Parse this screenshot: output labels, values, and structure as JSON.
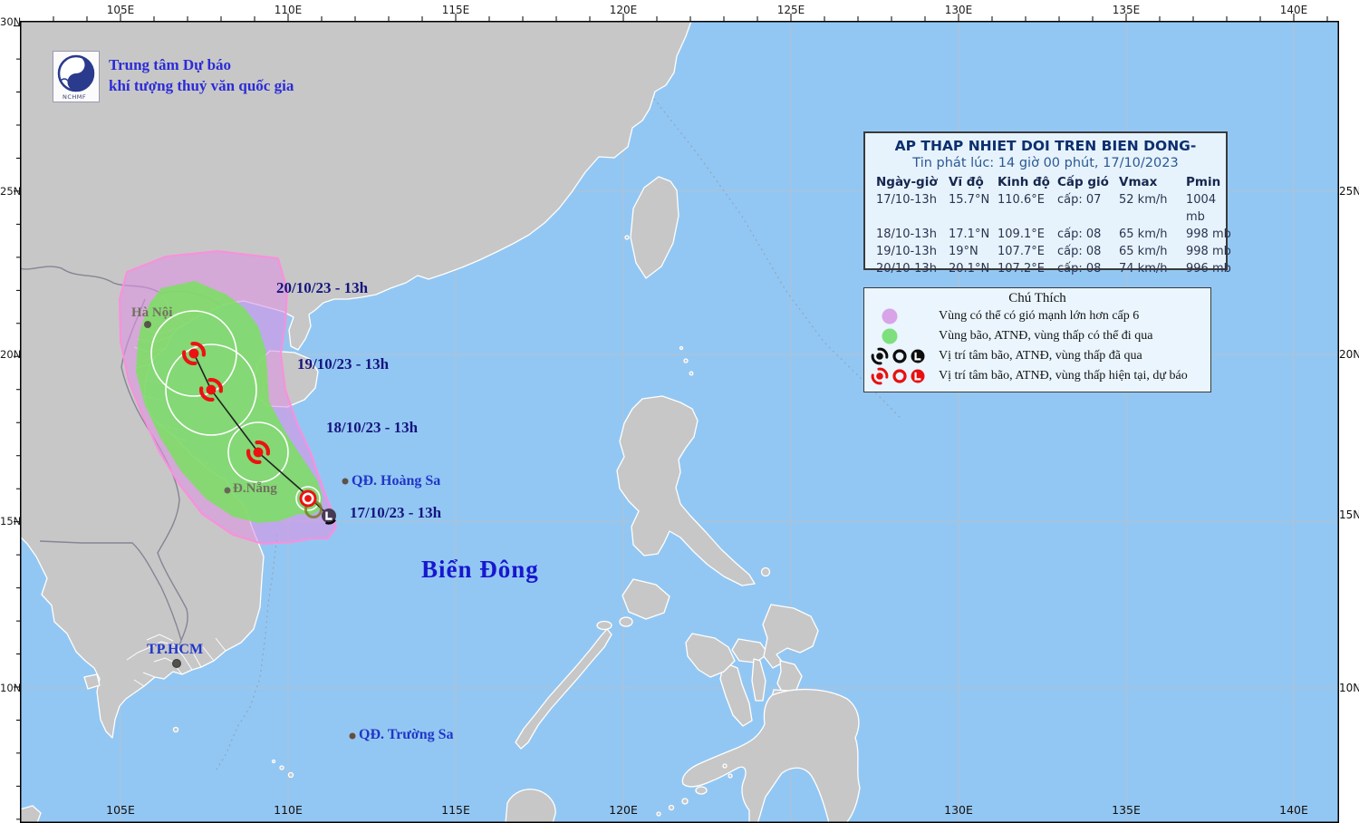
{
  "header": {
    "org_line1": "Trung tâm Dự báo",
    "org_line2": "khí tượng thuỷ văn quốc gia",
    "logo_text": "NCHMF"
  },
  "axis": {
    "top": [
      "105E",
      "110E",
      "115E",
      "120E",
      "125E",
      "130E",
      "135E",
      "140E"
    ],
    "bottom": [
      "105E",
      "110E",
      "115E",
      "120E",
      "130E",
      "135E",
      "140E"
    ],
    "left": [
      "30N",
      "25N",
      "20N",
      "15N",
      "10N"
    ],
    "right": [
      "25N",
      "20N",
      "15N",
      "10N"
    ]
  },
  "info_box": {
    "title": "AP THAP NHIET DOI TREN BIEN DONG-",
    "issued": "Tin phát lúc: 14 giờ 00 phút, 17/10/2023",
    "columns": [
      "Ngày-giờ",
      "Vĩ độ",
      "Kinh độ",
      "Cấp gió",
      "Vmax",
      "Pmin"
    ],
    "rows": [
      [
        "17/10-13h",
        "15.7°N",
        "110.6°E",
        "cấp: 07",
        "52 km/h",
        "1004 mb"
      ],
      [
        "18/10-13h",
        "17.1°N",
        "109.1°E",
        "cấp: 08",
        "65 km/h",
        "998 mb"
      ],
      [
        "19/10-13h",
        "19°N",
        "107.7°E",
        "cấp: 08",
        "65 km/h",
        "998 mb"
      ],
      [
        "20/10-13h",
        "20.1°N",
        "107.2°E",
        "cấp: 08",
        "74 km/h",
        "996 mb"
      ]
    ]
  },
  "legend": {
    "title": "Chú Thích",
    "items": [
      "Vùng có thể có gió mạnh lớn hơn cấp 6",
      "Vùng bão, ATNĐ, vùng thấp có thể đi qua",
      "Vị trí tâm bão, ATNĐ, vùng thấp đã qua",
      "Vị trí tâm bão, ATNĐ, vùng thấp hiện tại, dự báo"
    ]
  },
  "track_date_labels": [
    "20/10/23 - 13h",
    "19/10/23 - 13h",
    "18/10/23 - 13h",
    "17/10/23 - 13h"
  ],
  "map_labels": {
    "hanoi": "Hà Nội",
    "danang": "Đ.Nẵng",
    "hcm": "TP.HCM",
    "hoangsa": "QĐ. Hoàng Sa",
    "truongsa": "QĐ. Trường Sa",
    "sea": "Biển Đông"
  },
  "colors": {
    "sea": "#93c7f3",
    "land": "#c7c7c7",
    "warning_area_purple": "#df93e4",
    "passage_area_green": "#79e060",
    "storm_red": "#ec1212",
    "label_navy": "#15157e",
    "label_blue": "#2036c8"
  }
}
